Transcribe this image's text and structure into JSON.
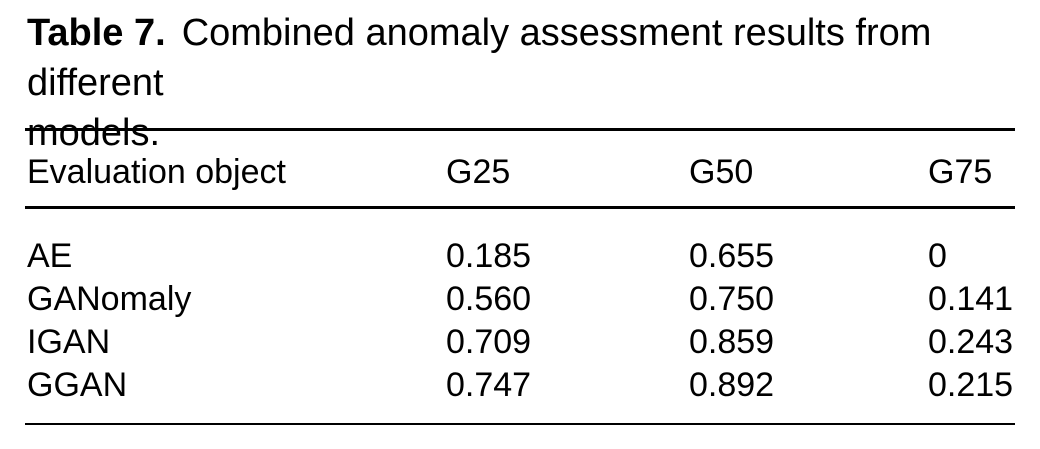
{
  "colors": {
    "background": "#ffffff",
    "text": "#000000",
    "rule": "#000000"
  },
  "caption": {
    "label": "Table 7.",
    "line1": "Combined anomaly assessment results from different",
    "line2": "models."
  },
  "table": {
    "columns": [
      "Evaluation object",
      "G25",
      "G50",
      "G75"
    ],
    "rows": [
      {
        "name": "AE",
        "values": [
          "0.185",
          "0.655",
          "0"
        ]
      },
      {
        "name": "GANomaly",
        "values": [
          "0.560",
          "0.750",
          "0.141"
        ]
      },
      {
        "name": "IGAN",
        "values": [
          "0.709",
          "0.859",
          "0.243"
        ]
      },
      {
        "name": "GGAN",
        "values": [
          "0.747",
          "0.892",
          "0.215"
        ]
      }
    ]
  }
}
